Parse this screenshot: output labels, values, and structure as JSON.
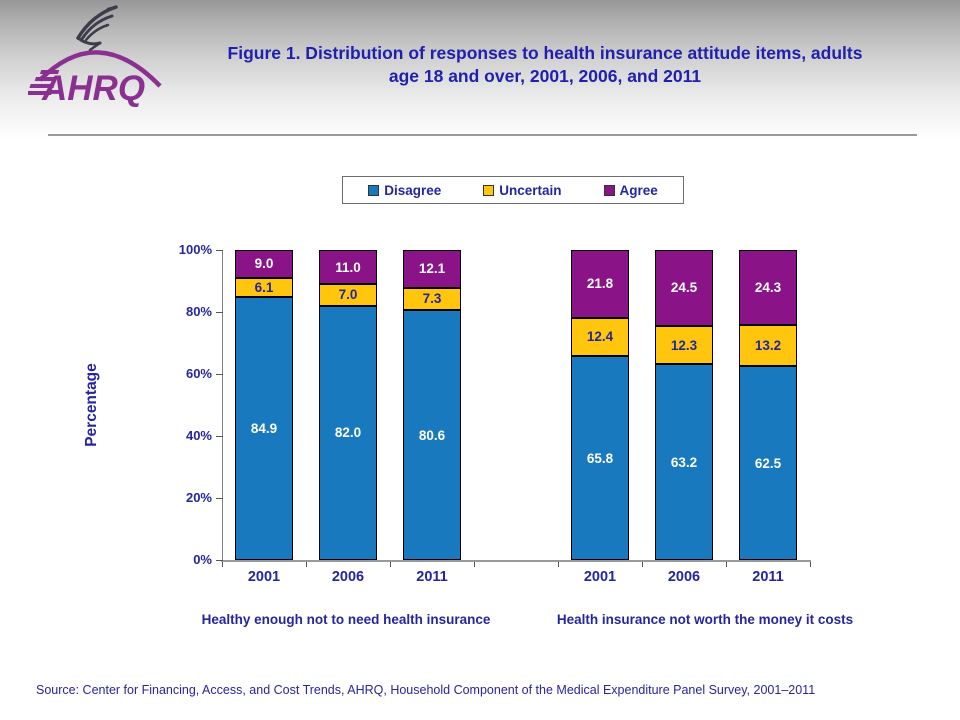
{
  "header": {
    "title": "Figure 1. Distribution of responses to health insurance attitude items, adults age 18 and over, 2001, 2006, and 2011",
    "logo_text": "AHRQ"
  },
  "chart_data": {
    "type": "bar",
    "stacked": true,
    "ylabel": "Percentage",
    "ylim": [
      0,
      100
    ],
    "y_tick_values": [
      0,
      20,
      40,
      60,
      80,
      100
    ],
    "y_tick_labels": [
      "0%",
      "20%",
      "40%",
      "60%",
      "80%",
      "100%"
    ],
    "legend_position": "top",
    "grid": false,
    "groups": [
      {
        "label": "Healthy enough not to need health insurance",
        "categories": [
          "2001",
          "2006",
          "2011"
        ]
      },
      {
        "label": "Health insurance not worth the money it costs",
        "categories": [
          "2001",
          "2006",
          "2011"
        ]
      }
    ],
    "series": [
      {
        "name": "Disagree",
        "color": "#1879BF",
        "label_color": "#FFFFFF",
        "values": [
          [
            84.9,
            82.0,
            80.6
          ],
          [
            65.8,
            63.2,
            62.5
          ]
        ]
      },
      {
        "name": "Uncertain",
        "color": "#FFC60D",
        "label_color": "#2525A0",
        "values": [
          [
            6.1,
            7.0,
            7.3
          ],
          [
            12.4,
            12.3,
            13.2
          ]
        ]
      },
      {
        "name": "Agree",
        "color": "#8A1388",
        "label_color": "#FFFFFF",
        "values": [
          [
            9.0,
            11.0,
            12.1
          ],
          [
            21.8,
            24.5,
            24.3
          ]
        ]
      }
    ]
  },
  "source": "Source: Center for Financing, Access, and Cost Trends, AHRQ, Household Component of the Medical Expenditure Panel Survey,  2001–2011",
  "colors": {
    "title_text": "#2020B0",
    "body_text": "#2525A0",
    "logo_purple": "#8A3090",
    "axis_gray": "#999999"
  }
}
